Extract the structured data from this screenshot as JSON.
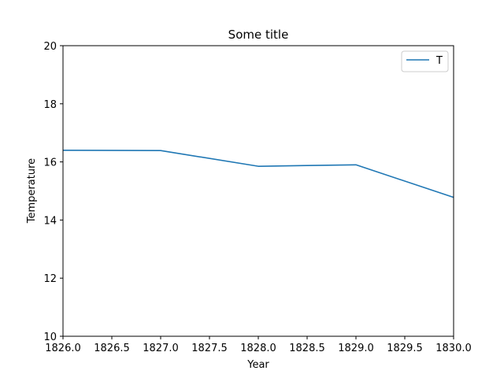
{
  "chart_data": {
    "type": "line",
    "title": "Some title",
    "xlabel": "Year",
    "ylabel": "Temperature",
    "xlim": [
      1826.0,
      1830.0
    ],
    "ylim": [
      10,
      20
    ],
    "x_ticks": [
      1826.0,
      1826.5,
      1827.0,
      1827.5,
      1828.0,
      1828.5,
      1829.0,
      1829.5,
      1830.0
    ],
    "x_tick_labels": [
      "1826.0",
      "1826.5",
      "1827.0",
      "1827.5",
      "1828.0",
      "1828.5",
      "1829.0",
      "1829.5",
      "1830.0"
    ],
    "y_ticks": [
      10,
      12,
      14,
      16,
      18,
      20
    ],
    "y_tick_labels": [
      "10",
      "12",
      "14",
      "16",
      "18",
      "20"
    ],
    "grid": false,
    "legend_position": "top-right",
    "series": [
      {
        "name": "T",
        "color": "#1f77b4",
        "x": [
          1826,
          1827,
          1828,
          1829,
          1830
        ],
        "y": [
          16.4,
          16.39,
          15.85,
          15.9,
          14.78
        ]
      }
    ]
  }
}
